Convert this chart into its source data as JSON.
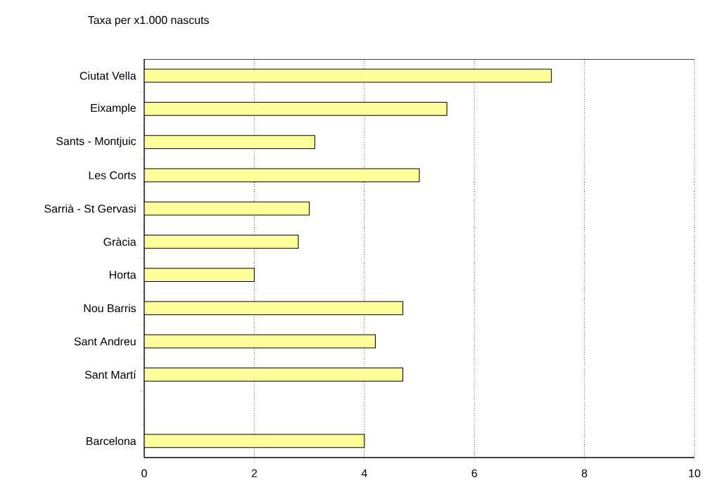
{
  "chart_data": {
    "type": "bar",
    "orientation": "horizontal",
    "title": "Taxa per x1.000 nascuts",
    "categories": [
      "Ciutat Vella",
      "Eixample",
      "Sants - Montjuic",
      "Les Corts",
      "Sarrià - St Gervasi",
      "Gràcia",
      "Horta",
      "Nou Barris",
      "Sant Andreu",
      "Sant Martí",
      null,
      "Barcelona"
    ],
    "values": [
      7.4,
      5.5,
      3.1,
      5.0,
      3.0,
      2.8,
      2.0,
      4.7,
      4.2,
      4.7,
      null,
      4.0
    ],
    "color": "#ffff99",
    "xlim": [
      0,
      10
    ],
    "xticks": [
      0,
      2,
      4,
      6,
      8,
      10
    ],
    "grid": "x"
  }
}
